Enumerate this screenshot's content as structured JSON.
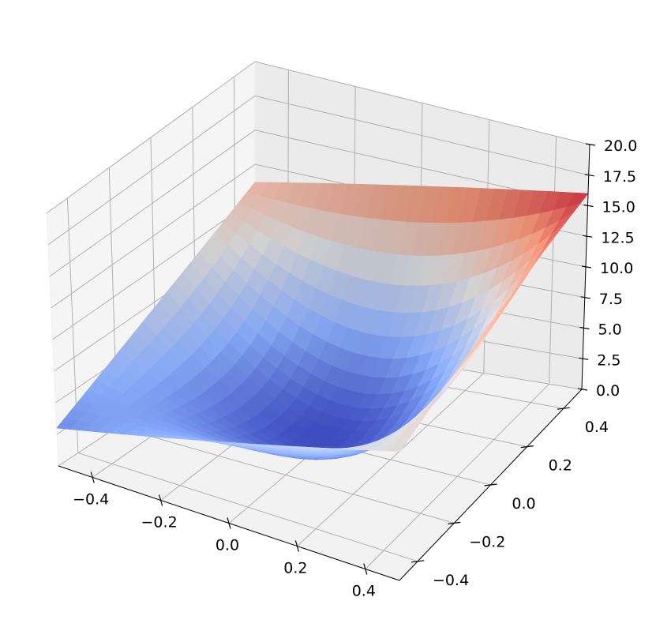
{
  "chart_data": {
    "type": "surface3d",
    "title": "",
    "xlabel": "",
    "ylabel": "",
    "zlabel": "",
    "colormap": "coolwarm",
    "colormap_colors": [
      "#3b4cc0",
      "#8db0fe",
      "#dddddd",
      "#f4987a",
      "#b40426"
    ],
    "xlim": [
      -0.5,
      0.5
    ],
    "ylim": [
      -0.5,
      0.5
    ],
    "zlim": [
      0,
      20
    ],
    "grid": true,
    "x_ticks": [
      -0.4,
      -0.2,
      0.0,
      0.2,
      0.4
    ],
    "y_ticks": [
      -0.4,
      -0.2,
      0.0,
      0.2,
      0.4
    ],
    "z_ticks": [
      0.0,
      2.5,
      5.0,
      7.5,
      10.0,
      12.5,
      15.0,
      17.5,
      20.0
    ],
    "x_tick_labels": [
      "−0.4",
      "−0.2",
      "0.0",
      "0.2",
      "0.4"
    ],
    "y_tick_labels": [
      "−0.4",
      "−0.2",
      "0.0",
      "0.2",
      "0.4"
    ],
    "z_tick_labels": [
      "0.0",
      "2.5",
      "5.0",
      "7.5",
      "10.0",
      "12.5",
      "15.0",
      "17.5",
      "20.0"
    ],
    "surface": {
      "grid_n": 25,
      "corner_values": {
        "x_min_y_min": 3.0,
        "x_min_y_max": 11.2,
        "x_max_y_min": 9.0,
        "x_max_y_max": 16.0
      },
      "center_value": 0.2
    }
  }
}
